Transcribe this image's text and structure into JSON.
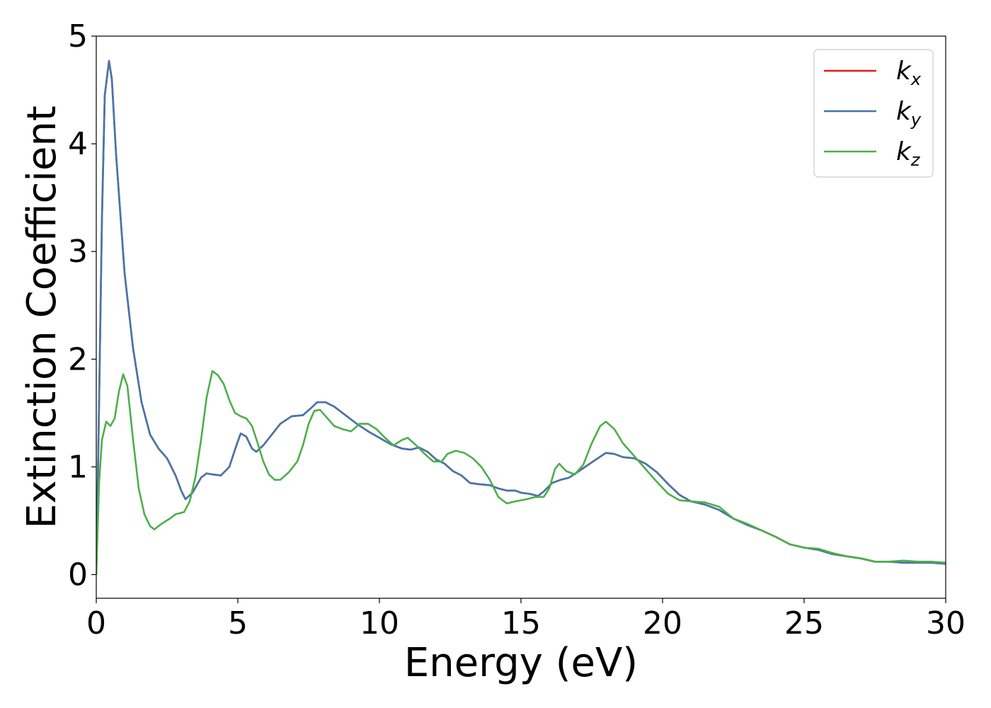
{
  "chart_data": {
    "type": "line",
    "xlabel": "Energy (eV)",
    "ylabel": "Extinction Coefficient",
    "xlim": [
      0,
      30
    ],
    "ylim": [
      -0.22,
      5.0
    ],
    "xticks": [
      0,
      5,
      10,
      15,
      20,
      25,
      30
    ],
    "yticks": [
      0,
      1,
      2,
      3,
      4,
      5
    ],
    "legend_position": "top-right",
    "grid": false,
    "series": [
      {
        "name": "k_x",
        "label_main": "k",
        "label_sub": "x",
        "color": "#e41a1c",
        "points": [
          [
            0,
            0
          ],
          [
            0.1,
            1.6
          ],
          [
            0.2,
            3.3
          ],
          [
            0.3,
            4.45
          ],
          [
            0.45,
            4.77
          ],
          [
            0.55,
            4.6
          ],
          [
            0.7,
            3.9
          ],
          [
            1.0,
            2.8
          ],
          [
            1.3,
            2.1
          ],
          [
            1.6,
            1.6
          ],
          [
            1.9,
            1.3
          ],
          [
            2.2,
            1.17
          ],
          [
            2.5,
            1.08
          ],
          [
            2.8,
            0.92
          ],
          [
            3.0,
            0.78
          ],
          [
            3.15,
            0.7
          ],
          [
            3.4,
            0.76
          ],
          [
            3.7,
            0.9
          ],
          [
            3.9,
            0.94
          ],
          [
            4.1,
            0.93
          ],
          [
            4.4,
            0.92
          ],
          [
            4.7,
            1.0
          ],
          [
            4.95,
            1.2
          ],
          [
            5.1,
            1.31
          ],
          [
            5.3,
            1.28
          ],
          [
            5.5,
            1.17
          ],
          [
            5.65,
            1.14
          ],
          [
            5.9,
            1.2
          ],
          [
            6.2,
            1.3
          ],
          [
            6.5,
            1.4
          ],
          [
            6.9,
            1.47
          ],
          [
            7.3,
            1.48
          ],
          [
            7.6,
            1.55
          ],
          [
            7.8,
            1.6
          ],
          [
            8.1,
            1.6
          ],
          [
            8.4,
            1.56
          ],
          [
            8.8,
            1.48
          ],
          [
            9.2,
            1.4
          ],
          [
            9.6,
            1.33
          ],
          [
            10.0,
            1.27
          ],
          [
            10.4,
            1.21
          ],
          [
            10.8,
            1.17
          ],
          [
            11.1,
            1.16
          ],
          [
            11.4,
            1.18
          ],
          [
            11.7,
            1.14
          ],
          [
            12.0,
            1.07
          ],
          [
            12.3,
            1.03
          ],
          [
            12.6,
            0.96
          ],
          [
            12.9,
            0.92
          ],
          [
            13.2,
            0.85
          ],
          [
            13.5,
            0.84
          ],
          [
            13.9,
            0.83
          ],
          [
            14.2,
            0.8
          ],
          [
            14.5,
            0.78
          ],
          [
            14.8,
            0.78
          ],
          [
            15.0,
            0.76
          ],
          [
            15.3,
            0.75
          ],
          [
            15.6,
            0.73
          ],
          [
            15.8,
            0.77
          ],
          [
            16.1,
            0.85
          ],
          [
            16.4,
            0.88
          ],
          [
            16.7,
            0.9
          ],
          [
            17.1,
            0.97
          ],
          [
            17.6,
            1.06
          ],
          [
            18.0,
            1.13
          ],
          [
            18.3,
            1.12
          ],
          [
            18.6,
            1.09
          ],
          [
            19.0,
            1.08
          ],
          [
            19.4,
            1.03
          ],
          [
            19.8,
            0.95
          ],
          [
            20.2,
            0.84
          ],
          [
            20.6,
            0.74
          ],
          [
            21.0,
            0.68
          ],
          [
            21.5,
            0.65
          ],
          [
            22.0,
            0.6
          ],
          [
            22.5,
            0.52
          ],
          [
            23.0,
            0.46
          ],
          [
            23.5,
            0.41
          ],
          [
            24.0,
            0.35
          ],
          [
            24.5,
            0.28
          ],
          [
            25.0,
            0.25
          ],
          [
            25.5,
            0.23
          ],
          [
            26.0,
            0.19
          ],
          [
            26.5,
            0.17
          ],
          [
            27.0,
            0.15
          ],
          [
            27.5,
            0.12
          ],
          [
            28.0,
            0.12
          ],
          [
            28.5,
            0.11
          ],
          [
            29.0,
            0.11
          ],
          [
            29.5,
            0.11
          ],
          [
            30.0,
            0.1
          ]
        ]
      },
      {
        "name": "k_y",
        "label_main": "k",
        "label_sub": "y",
        "color": "#4477aa",
        "points": [
          [
            0,
            0
          ],
          [
            0.1,
            1.6
          ],
          [
            0.2,
            3.3
          ],
          [
            0.3,
            4.45
          ],
          [
            0.45,
            4.77
          ],
          [
            0.55,
            4.6
          ],
          [
            0.7,
            3.9
          ],
          [
            1.0,
            2.8
          ],
          [
            1.3,
            2.1
          ],
          [
            1.6,
            1.6
          ],
          [
            1.9,
            1.3
          ],
          [
            2.2,
            1.17
          ],
          [
            2.5,
            1.08
          ],
          [
            2.8,
            0.92
          ],
          [
            3.0,
            0.78
          ],
          [
            3.15,
            0.7
          ],
          [
            3.4,
            0.76
          ],
          [
            3.7,
            0.9
          ],
          [
            3.9,
            0.94
          ],
          [
            4.1,
            0.93
          ],
          [
            4.4,
            0.92
          ],
          [
            4.7,
            1.0
          ],
          [
            4.95,
            1.2
          ],
          [
            5.1,
            1.31
          ],
          [
            5.3,
            1.28
          ],
          [
            5.5,
            1.17
          ],
          [
            5.65,
            1.14
          ],
          [
            5.9,
            1.2
          ],
          [
            6.2,
            1.3
          ],
          [
            6.5,
            1.4
          ],
          [
            6.9,
            1.47
          ],
          [
            7.3,
            1.48
          ],
          [
            7.6,
            1.55
          ],
          [
            7.8,
            1.6
          ],
          [
            8.1,
            1.6
          ],
          [
            8.4,
            1.56
          ],
          [
            8.8,
            1.48
          ],
          [
            9.2,
            1.4
          ],
          [
            9.6,
            1.33
          ],
          [
            10.0,
            1.27
          ],
          [
            10.4,
            1.21
          ],
          [
            10.8,
            1.17
          ],
          [
            11.1,
            1.16
          ],
          [
            11.4,
            1.18
          ],
          [
            11.7,
            1.14
          ],
          [
            12.0,
            1.07
          ],
          [
            12.3,
            1.03
          ],
          [
            12.6,
            0.96
          ],
          [
            12.9,
            0.92
          ],
          [
            13.2,
            0.85
          ],
          [
            13.5,
            0.84
          ],
          [
            13.9,
            0.83
          ],
          [
            14.2,
            0.8
          ],
          [
            14.5,
            0.78
          ],
          [
            14.8,
            0.78
          ],
          [
            15.0,
            0.76
          ],
          [
            15.3,
            0.75
          ],
          [
            15.6,
            0.73
          ],
          [
            15.8,
            0.77
          ],
          [
            16.1,
            0.85
          ],
          [
            16.4,
            0.88
          ],
          [
            16.7,
            0.9
          ],
          [
            17.1,
            0.97
          ],
          [
            17.6,
            1.06
          ],
          [
            18.0,
            1.13
          ],
          [
            18.3,
            1.12
          ],
          [
            18.6,
            1.09
          ],
          [
            19.0,
            1.08
          ],
          [
            19.4,
            1.03
          ],
          [
            19.8,
            0.95
          ],
          [
            20.2,
            0.84
          ],
          [
            20.6,
            0.74
          ],
          [
            21.0,
            0.68
          ],
          [
            21.5,
            0.65
          ],
          [
            22.0,
            0.6
          ],
          [
            22.5,
            0.52
          ],
          [
            23.0,
            0.46
          ],
          [
            23.5,
            0.41
          ],
          [
            24.0,
            0.35
          ],
          [
            24.5,
            0.28
          ],
          [
            25.0,
            0.25
          ],
          [
            25.5,
            0.23
          ],
          [
            26.0,
            0.19
          ],
          [
            26.5,
            0.17
          ],
          [
            27.0,
            0.15
          ],
          [
            27.5,
            0.12
          ],
          [
            28.0,
            0.12
          ],
          [
            28.5,
            0.11
          ],
          [
            29.0,
            0.11
          ],
          [
            29.5,
            0.11
          ],
          [
            30.0,
            0.1
          ]
        ]
      },
      {
        "name": "k_z",
        "label_main": "k",
        "label_sub": "z",
        "color": "#4daf4a",
        "points": [
          [
            0,
            0
          ],
          [
            0.1,
            0.85
          ],
          [
            0.2,
            1.25
          ],
          [
            0.35,
            1.42
          ],
          [
            0.5,
            1.38
          ],
          [
            0.65,
            1.45
          ],
          [
            0.8,
            1.7
          ],
          [
            0.95,
            1.86
          ],
          [
            1.1,
            1.75
          ],
          [
            1.3,
            1.25
          ],
          [
            1.5,
            0.8
          ],
          [
            1.7,
            0.56
          ],
          [
            1.9,
            0.45
          ],
          [
            2.05,
            0.42
          ],
          [
            2.3,
            0.47
          ],
          [
            2.6,
            0.52
          ],
          [
            2.8,
            0.56
          ],
          [
            3.1,
            0.58
          ],
          [
            3.3,
            0.68
          ],
          [
            3.5,
            0.9
          ],
          [
            3.7,
            1.25
          ],
          [
            3.9,
            1.65
          ],
          [
            4.1,
            1.89
          ],
          [
            4.3,
            1.85
          ],
          [
            4.5,
            1.77
          ],
          [
            4.7,
            1.62
          ],
          [
            4.9,
            1.5
          ],
          [
            5.1,
            1.47
          ],
          [
            5.3,
            1.45
          ],
          [
            5.5,
            1.38
          ],
          [
            5.7,
            1.22
          ],
          [
            5.9,
            1.05
          ],
          [
            6.1,
            0.93
          ],
          [
            6.3,
            0.88
          ],
          [
            6.5,
            0.88
          ],
          [
            6.8,
            0.95
          ],
          [
            7.1,
            1.05
          ],
          [
            7.3,
            1.2
          ],
          [
            7.5,
            1.4
          ],
          [
            7.7,
            1.52
          ],
          [
            7.9,
            1.53
          ],
          [
            8.1,
            1.47
          ],
          [
            8.4,
            1.38
          ],
          [
            8.7,
            1.35
          ],
          [
            9.0,
            1.33
          ],
          [
            9.3,
            1.4
          ],
          [
            9.6,
            1.4
          ],
          [
            9.9,
            1.35
          ],
          [
            10.2,
            1.27
          ],
          [
            10.5,
            1.2
          ],
          [
            10.8,
            1.25
          ],
          [
            11.0,
            1.27
          ],
          [
            11.3,
            1.2
          ],
          [
            11.6,
            1.12
          ],
          [
            11.9,
            1.05
          ],
          [
            12.2,
            1.05
          ],
          [
            12.4,
            1.12
          ],
          [
            12.7,
            1.15
          ],
          [
            13.0,
            1.13
          ],
          [
            13.3,
            1.08
          ],
          [
            13.6,
            1.0
          ],
          [
            13.9,
            0.88
          ],
          [
            14.2,
            0.72
          ],
          [
            14.5,
            0.66
          ],
          [
            14.8,
            0.68
          ],
          [
            15.2,
            0.7
          ],
          [
            15.5,
            0.72
          ],
          [
            15.8,
            0.72
          ],
          [
            16.0,
            0.8
          ],
          [
            16.2,
            0.98
          ],
          [
            16.35,
            1.03
          ],
          [
            16.6,
            0.96
          ],
          [
            16.9,
            0.93
          ],
          [
            17.2,
            1.02
          ],
          [
            17.5,
            1.22
          ],
          [
            17.8,
            1.38
          ],
          [
            18.0,
            1.42
          ],
          [
            18.3,
            1.35
          ],
          [
            18.6,
            1.22
          ],
          [
            19.0,
            1.1
          ],
          [
            19.4,
            0.98
          ],
          [
            19.8,
            0.86
          ],
          [
            20.2,
            0.75
          ],
          [
            20.6,
            0.69
          ],
          [
            21.0,
            0.68
          ],
          [
            21.5,
            0.67
          ],
          [
            22.0,
            0.63
          ],
          [
            22.5,
            0.52
          ],
          [
            23.0,
            0.47
          ],
          [
            23.5,
            0.41
          ],
          [
            24.0,
            0.35
          ],
          [
            24.5,
            0.28
          ],
          [
            25.0,
            0.25
          ],
          [
            25.5,
            0.24
          ],
          [
            26.0,
            0.2
          ],
          [
            26.5,
            0.17
          ],
          [
            27.0,
            0.15
          ],
          [
            27.5,
            0.12
          ],
          [
            28.0,
            0.12
          ],
          [
            28.5,
            0.13
          ],
          [
            29.0,
            0.12
          ],
          [
            29.5,
            0.12
          ],
          [
            30.0,
            0.11
          ]
        ]
      }
    ]
  }
}
